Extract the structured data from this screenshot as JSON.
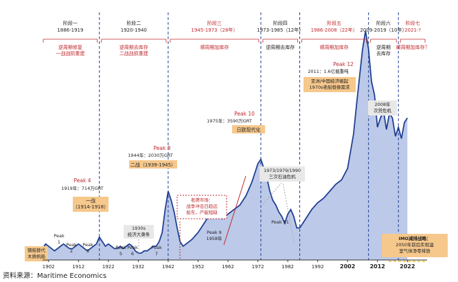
{
  "source": "资料来源：Maritime Economics",
  "colors": {
    "area_fill": "#bcc9e8",
    "line": "#1f3f93",
    "red": "#c0282d",
    "note_bg": "#f6c88c",
    "gray_box": "#e8e8e8",
    "dashed_gray": "#aaaaaa"
  },
  "phases": [
    {
      "title": "阶段一",
      "range": "1886-1919",
      "note": [
        "逆周期修复",
        "一战战损重建"
      ],
      "title_red": false,
      "note_red": true
    },
    {
      "title": "阶段二",
      "range": "1920-1940",
      "note": [
        "逆周期去库存",
        "二战战损重建"
      ],
      "title_red": false,
      "note_red": true
    },
    {
      "title": "阶段三",
      "range": "1945-1973（28年）",
      "note": [
        "顺周期加库存"
      ],
      "title_red": true,
      "note_red": true
    },
    {
      "title": "阶段四",
      "range": "1973-1985（12年）",
      "note": [
        "逆周期去库存"
      ],
      "title_red": false,
      "note_red": false
    },
    {
      "title": "阶段五",
      "range": "1986-2008（22年）",
      "note": [
        "顺周期加库存"
      ],
      "title_red": true,
      "note_red": true
    },
    {
      "title": "阶段六",
      "range": "2009-2019（10年）",
      "note": [
        "逆周期",
        "去库存"
      ],
      "title_red": false,
      "note_red": false
    },
    {
      "title": "阶段七",
      "range": "2021-?",
      "note": [
        "顺周期加库存？"
      ],
      "title_red": true,
      "note_red": true
    }
  ],
  "annotations": {
    "peak1": "Peak\n1",
    "peak2": "Peak\n2",
    "peak3": "Peak\n3",
    "peak4": "Peak 4",
    "peak4_val": "1919年：714万GRT",
    "ww1": "一战\n（1914-1918）",
    "peak5": "Peak\n5",
    "peak6": "Peak\n6",
    "peak7": "Peak\n7",
    "depression": "1930s\n经济大萧条",
    "peak8": "Peak 8",
    "peak8_val": "1944年：2030万GRT",
    "ww2": "二战（1939-1945）",
    "scrap": "钢船替代\n木质帆船",
    "western": "老牌市场：\n战争冲击日趋远\n船东，产能短缺",
    "peak9": "Peak 9\n1958年",
    "peak10": "Peak 10",
    "peak10_val": "1975年：3590万GRT",
    "japan": "日欧现代化",
    "oil": "1973/1979/1990\n三次石油危机",
    "peak11": "Peak 11",
    "peak12": "Peak 12",
    "peak12_val": "2011：1.6亿载重吨",
    "asia": "亚洲/中国经济崛起\n1970s老船替换需求",
    "crisis": "2008年\n次贷危机",
    "imo_title": "IMO减排战略：",
    "imo_body": "2050年前后实现温\n室气体净零排放"
  },
  "chart_data": {
    "type": "area",
    "title": "",
    "xlabel": "",
    "ylabel": "",
    "xlim": [
      1900,
      2024
    ],
    "ylim": [
      0,
      100
    ],
    "y_unit": "index (no axis printed)",
    "x_ticks": [
      "1902",
      "1912",
      "1922",
      "1932",
      "1942",
      "1952",
      "1962",
      "1972",
      "1982",
      "1992",
      "2002",
      "2012",
      "2022"
    ],
    "x_ticks_bold": [
      "2002",
      "2012",
      "2022"
    ],
    "phase_boundaries": [
      1919,
      1942,
      1973,
      1986,
      2009,
      2019
    ],
    "series": [
      {
        "x": [
          1900,
          1901,
          1902,
          1903,
          1904,
          1905,
          1906,
          1907,
          1908,
          1909,
          1910,
          1911,
          1912,
          1913,
          1914,
          1915,
          1916,
          1917,
          1918,
          1919,
          1920,
          1921,
          1922,
          1923,
          1924,
          1925,
          1926,
          1927,
          1928,
          1929,
          1930,
          1931,
          1932,
          1933,
          1934,
          1935,
          1936,
          1937,
          1938,
          1939,
          1940,
          1941,
          1942,
          1943,
          1944,
          1945,
          1946,
          1947,
          1948,
          1950,
          1952,
          1954,
          1956,
          1957,
          1958,
          1959,
          1960,
          1962,
          1964,
          1966,
          1968,
          1970,
          1971,
          1972,
          1973,
          1974,
          1975,
          1976,
          1977,
          1978,
          1979,
          1980,
          1981,
          1982,
          1983,
          1984,
          1985,
          1986,
          1987,
          1988,
          1990,
          1992,
          1994,
          1996,
          1998,
          2000,
          2002,
          2004,
          2005,
          2006,
          2007,
          2008,
          2009,
          2010,
          2011,
          2012,
          2013,
          2014,
          2015,
          2016,
          2017,
          2018,
          2019,
          2020,
          2021,
          2022
        ],
        "y": [
          5,
          7,
          6,
          5,
          4,
          5,
          6,
          7,
          6,
          5,
          5,
          6,
          7,
          6,
          5,
          4,
          5,
          6,
          7,
          10,
          8,
          6,
          7,
          6,
          5,
          5,
          6,
          5,
          6,
          7,
          6,
          4,
          3,
          3,
          4,
          4,
          5,
          6,
          6,
          8,
          12,
          22,
          30,
          26,
          21,
          14,
          8,
          6,
          7,
          9,
          12,
          16,
          20,
          23,
          22,
          19,
          18,
          20,
          22,
          24,
          28,
          34,
          38,
          42,
          44,
          40,
          36,
          30,
          26,
          24,
          21,
          19,
          16,
          20,
          22,
          19,
          14,
          14,
          16,
          18,
          22,
          25,
          27,
          30,
          33,
          35,
          40,
          55,
          68,
          80,
          92,
          100,
          92,
          78,
          72,
          58,
          62,
          65,
          57,
          64,
          62,
          54,
          58,
          53,
          60,
          62
        ]
      }
    ]
  }
}
